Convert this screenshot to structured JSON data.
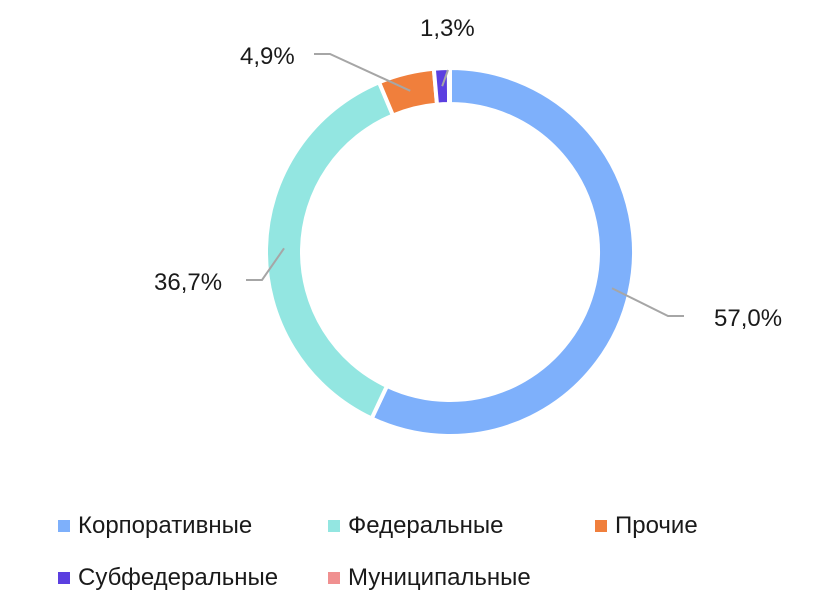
{
  "chart_data": {
    "type": "pie",
    "donut": true,
    "title": "",
    "legend_position": "bottom",
    "categories": [
      "Корпоративные",
      "Федеральные",
      "Прочие",
      "Субфедеральные",
      "Муниципальные"
    ],
    "values": [
      57.0,
      36.7,
      4.9,
      1.3,
      0.1
    ],
    "data_labels": [
      "57,0%",
      "36,7%",
      "4,9%",
      "1,3%",
      ""
    ],
    "colors": [
      "#7eb0fb",
      "#93e6e1",
      "#f07f3c",
      "#5b3fe0",
      "#f09090"
    ]
  }
}
